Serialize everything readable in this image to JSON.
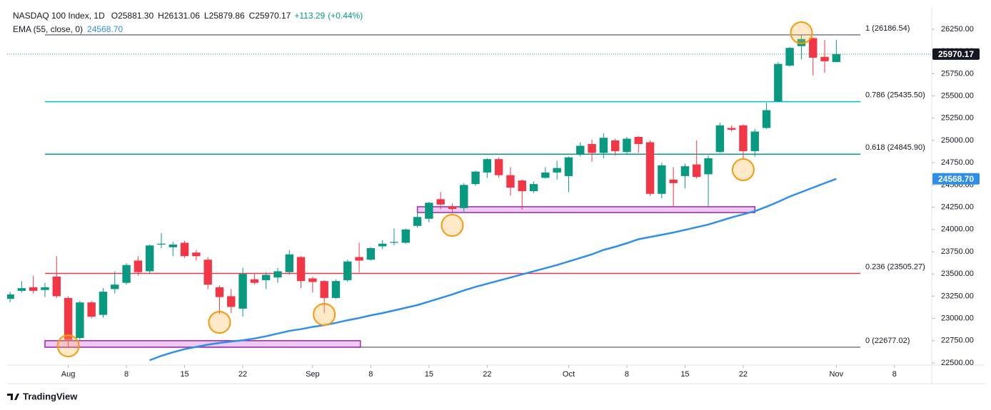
{
  "chart_data": {
    "type": "candlestick",
    "title": "NASDAQ 100 Index, 1D",
    "ohlc_legend": [
      {
        "key": "O",
        "value": 25881.3,
        "label": "25881.30"
      },
      {
        "key": "H",
        "value": 26131.06,
        "label": "26131.06"
      },
      {
        "key": "L",
        "value": 25879.86,
        "label": "25879.86"
      },
      {
        "key": "C",
        "value": 25970.17,
        "label": "25970.17"
      }
    ],
    "change": {
      "value": 113.29,
      "label": "+113.29"
    },
    "change_pct": {
      "value": 0.44,
      "label": "(+0.44%)"
    },
    "up_color": "#089981",
    "down_color": "#f23645",
    "x": [
      0,
      1,
      2,
      3,
      4,
      5,
      6,
      7,
      8,
      9,
      10,
      11,
      12,
      13,
      14,
      15,
      16,
      17,
      18,
      19,
      20,
      21,
      22,
      23,
      24,
      25,
      26,
      27,
      28,
      29,
      30,
      31,
      32,
      33,
      34,
      35,
      36,
      37,
      38,
      39,
      40,
      41,
      42,
      43,
      44,
      45,
      46,
      47,
      48,
      49,
      50,
      51,
      52,
      53,
      54,
      55,
      56,
      57,
      58,
      59,
      60,
      61,
      62,
      63,
      64,
      65,
      66,
      67,
      68,
      69,
      70,
      71
    ],
    "open": [
      23220,
      23310,
      23350,
      23320,
      23470,
      23230,
      22780,
      23180,
      23040,
      23330,
      23400,
      23650,
      23530,
      23830,
      23800,
      23850,
      23740,
      23660,
      23350,
      23250,
      23110,
      23440,
      23430,
      23460,
      23520,
      23690,
      23450,
      23420,
      23230,
      23430,
      23690,
      23660,
      23810,
      23850,
      23850,
      24040,
      24120,
      24340,
      24260,
      24240,
      24510,
      24640,
      24790,
      24610,
      24550,
      24430,
      24580,
      24640,
      24600,
      24850,
      24960,
      24860,
      25000,
      24870,
      25040,
      24980,
      24400,
      24560,
      24600,
      24730,
      24620,
      24870,
      25140,
      25170,
      24880,
      25140,
      25440,
      25840,
      26060,
      26150,
      25940,
      25881.3
    ],
    "high": [
      23300,
      23420,
      23480,
      23400,
      23700,
      23250,
      23200,
      23200,
      23340,
      23530,
      23620,
      23700,
      23830,
      23960,
      23860,
      23870,
      23770,
      23690,
      23370,
      23330,
      23570,
      23500,
      23520,
      23570,
      23770,
      23700,
      23470,
      23430,
      23440,
      23660,
      23850,
      23800,
      23880,
      24010,
      24010,
      24200,
      24310,
      24420,
      24290,
      24520,
      24660,
      24800,
      24810,
      24700,
      24560,
      24540,
      24700,
      24770,
      24820,
      24980,
      25010,
      25080,
      25020,
      25040,
      25050,
      25000,
      24750,
      24700,
      24740,
      25000,
      24830,
      25200,
      25170,
      25180,
      25130,
      25420,
      25880,
      26050,
      26190,
      26160,
      26130,
      26131.06
    ],
    "low": [
      23180,
      23290,
      23280,
      23240,
      23230,
      22677,
      22760,
      23000,
      23010,
      23280,
      23380,
      23480,
      23500,
      23790,
      23700,
      23680,
      23650,
      23330,
      23050,
      23060,
      23020,
      23380,
      23330,
      23400,
      23490,
      23340,
      23290,
      23060,
      23220,
      23410,
      23520,
      23650,
      23780,
      23820,
      23840,
      24020,
      24080,
      24230,
      24190,
      24200,
      24490,
      24580,
      24580,
      24380,
      24220,
      24410,
      24570,
      24560,
      24420,
      24820,
      24760,
      24800,
      24830,
      24850,
      24860,
      24380,
      24350,
      24250,
      24460,
      24570,
      24260,
      24860,
      25100,
      24790,
      24820,
      25130,
      25430,
      25830,
      25910,
      25730,
      25760,
      25879.86
    ],
    "close": [
      23270,
      23340,
      23310,
      23350,
      23250,
      22760,
      23180,
      23020,
      23300,
      23380,
      23600,
      23520,
      23820,
      23840,
      23830,
      23700,
      23700,
      23380,
      23240,
      23130,
      23500,
      23400,
      23490,
      23530,
      23720,
      23420,
      23410,
      23230,
      23420,
      23640,
      23650,
      23790,
      23840,
      23860,
      24000,
      24140,
      24300,
      24280,
      24230,
      24500,
      24650,
      24790,
      24610,
      24470,
      24430,
      24510,
      24640,
      24690,
      24810,
      24940,
      24860,
      25030,
      24880,
      25020,
      24960,
      24400,
      24720,
      24520,
      24710,
      24590,
      24800,
      25170,
      25120,
      24880,
      25100,
      25340,
      25860,
      26040,
      26140,
      25930,
      25890,
      25970.17
    ],
    "series": [
      {
        "name": "EMA (55, close, 0)",
        "color": "#2e8ee8",
        "last_label": "24568.70",
        "values": [
          null,
          null,
          null,
          null,
          null,
          null,
          null,
          null,
          null,
          null,
          null,
          null,
          22530,
          22580,
          22620,
          22655,
          22680,
          22705,
          22725,
          22740,
          22755,
          22775,
          22800,
          22830,
          22860,
          22880,
          22905,
          22925,
          22950,
          22980,
          23005,
          23035,
          23060,
          23090,
          23120,
          23150,
          23190,
          23230,
          23270,
          23315,
          23355,
          23390,
          23425,
          23460,
          23495,
          23530,
          23565,
          23600,
          23640,
          23680,
          23720,
          23770,
          23805,
          23845,
          23890,
          23915,
          23940,
          23965,
          23995,
          24025,
          24055,
          24095,
          24135,
          24170,
          24205,
          24255,
          24310,
          24370,
          24420,
          24470,
          24520,
          24568.7
        ]
      }
    ],
    "last_price": {
      "value": 25970.17,
      "label": "25970.17"
    },
    "fib_levels": [
      {
        "label": "1 (26186.54)",
        "value": 26186.54,
        "color": "#787b86"
      },
      {
        "label": "0.786 (25435.50)",
        "value": 25435.5,
        "color": "#00bcd4"
      },
      {
        "label": "0.618 (24845.90)",
        "value": 24845.9,
        "color": "#089981"
      },
      {
        "label": "0.236 (23505.27)",
        "value": 23505.27,
        "color": "#f23645"
      },
      {
        "label": "0 (22677.02)",
        "value": 22677.02,
        "color": "#787b86"
      }
    ],
    "zones": [
      {
        "x": [
          3,
          30.1
        ],
        "y": [
          22677,
          22750
        ]
      },
      {
        "x": [
          35,
          64
        ],
        "y": [
          24190,
          24255
        ]
      }
    ],
    "highlights": [
      {
        "x": 5,
        "y": 22692
      },
      {
        "x": 18,
        "y": 22956
      },
      {
        "x": 27,
        "y": 23045
      },
      {
        "x": 38,
        "y": 24046
      },
      {
        "x": 63,
        "y": 24671
      },
      {
        "x": 68,
        "y": 26210
      }
    ],
    "xlim": [
      -0.25,
      79.2
    ],
    "xticks": [
      {
        "value": 5,
        "label": "Aug"
      },
      {
        "value": 10,
        "label": "8"
      },
      {
        "value": 15,
        "label": "15"
      },
      {
        "value": 20,
        "label": "22"
      },
      {
        "value": 26,
        "label": "Sep"
      },
      {
        "value": 31,
        "label": "8"
      },
      {
        "value": 36,
        "label": "15"
      },
      {
        "value": 41,
        "label": "22"
      },
      {
        "value": 48,
        "label": "Oct"
      },
      {
        "value": 53,
        "label": "8"
      },
      {
        "value": 58,
        "label": "15"
      },
      {
        "value": 63,
        "label": "22"
      },
      {
        "value": 71,
        "label": "Nov"
      },
      {
        "value": 76,
        "label": "8"
      }
    ],
    "ylim": [
      22476,
      26498
    ],
    "yticks": [
      {
        "value": 22500,
        "label": "22500.00"
      },
      {
        "value": 22750,
        "label": "22750.00"
      },
      {
        "value": 23000,
        "label": "23000.00"
      },
      {
        "value": 23250,
        "label": "23250.00"
      },
      {
        "value": 23500,
        "label": "23500.00"
      },
      {
        "value": 23750,
        "label": "23750.00"
      },
      {
        "value": 24000,
        "label": "24000.00"
      },
      {
        "value": 24250,
        "label": "24250.00"
      },
      {
        "value": 24500,
        "label": "24500.00"
      },
      {
        "value": 24750,
        "label": "24750.00"
      },
      {
        "value": 25000,
        "label": "25000.00"
      },
      {
        "value": 25250,
        "label": "25250.00"
      },
      {
        "value": 25500,
        "label": "25500.00"
      },
      {
        "value": 25750,
        "label": "25750.00"
      },
      {
        "value": 26000,
        "label": "26000.00"
      },
      {
        "value": 26250,
        "label": "26250.00"
      }
    ],
    "footer": "TradingView"
  }
}
